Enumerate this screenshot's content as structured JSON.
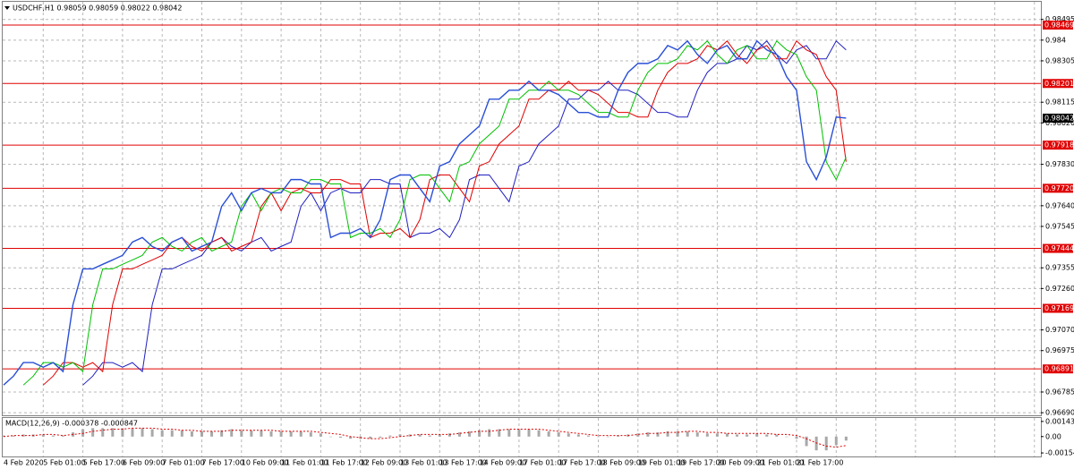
{
  "chart_data": [
    {
      "type": "line",
      "title": "USDCHF,H1  0.98059 0.98059 0.98022 0.98042",
      "categories": [
        "4 Feb 2020",
        null,
        null,
        null,
        "5 Feb 01:00",
        null,
        null,
        null,
        "5 Feb 17:00",
        null,
        null,
        null,
        "6 Feb 09:00",
        null,
        null,
        null,
        "7 Feb 01:00",
        null,
        null,
        null,
        "7 Feb 17:00",
        null,
        null,
        null,
        "10 Feb 09:00",
        null,
        null,
        null,
        "11 Feb 01:00",
        null,
        null,
        null,
        "11 Feb 17:00",
        null,
        null,
        null,
        "12 Feb 09:00",
        null,
        null,
        null,
        "13 Feb 01:00",
        null,
        null,
        null,
        "13 Feb 17:00",
        null,
        null,
        null,
        "14 Feb 09:00",
        null,
        null,
        null,
        "17 Feb 01:00",
        null,
        null,
        null,
        "17 Feb 17:00",
        null,
        null,
        null,
        "18 Feb 09:00",
        null,
        null,
        null,
        "19 Feb 01:00",
        null,
        null,
        null,
        "19 Feb 17:00",
        null,
        null,
        null,
        "20 Feb 09:00",
        null,
        null,
        null,
        "21 Feb 01:00",
        null,
        null,
        null,
        "21 Feb 17:00",
        null,
        null,
        null,
        null,
        null
      ],
      "series": [
        {
          "color": "#2a4fd6",
          "width": 1.4,
          "values": [
            0.96817,
            0.96858,
            0.9692,
            0.9692,
            0.96899,
            0.9692,
            0.96879,
            0.97186,
            0.9735,
            0.9735,
            0.97371,
            0.97391,
            0.97412,
            0.97473,
            0.97494,
            0.97453,
            0.97432,
            0.97473,
            0.97494,
            0.97432,
            0.97453,
            0.97473,
            0.97637,
            0.97699,
            0.97617,
            0.97699,
            0.97719,
            0.97699,
            0.97699,
            0.9776,
            0.9776,
            0.9774,
            0.9774,
            0.97494,
            0.97514,
            0.97514,
            0.97535,
            0.97494,
            0.97576,
            0.9776,
            0.97781,
            0.97781,
            0.97719,
            0.97658,
            0.97822,
            0.97842,
            0.97924,
            0.97965,
            0.98006,
            0.98129,
            0.98129,
            0.9817,
            0.9817,
            0.98211,
            0.9817,
            0.9817,
            0.9815,
            0.98109,
            0.98068,
            0.98068,
            0.98047,
            0.98047,
            0.9817,
            0.98252,
            0.98293,
            0.98293,
            0.98314,
            0.98375,
            0.98355,
            0.98396,
            0.98334,
            0.98293,
            0.98355,
            0.98375,
            0.98314,
            0.98314,
            0.98396,
            0.98355,
            0.98334,
            0.98232,
            0.9817,
            0.97842,
            0.9776,
            0.97863,
            0.98047,
            0.98042
          ]
        },
        {
          "color": "#00c000",
          "width": 1,
          "values": [
            null,
            null,
            0.96817,
            0.96858,
            0.9692,
            0.9692,
            0.96899,
            0.9692,
            0.96879,
            0.97186,
            0.9735,
            0.9735,
            0.97371,
            0.97391,
            0.97412,
            0.97473,
            0.97494,
            0.97453,
            0.97432,
            0.97473,
            0.97494,
            0.97432,
            0.97453,
            0.97473,
            0.97637,
            0.97699,
            0.97617,
            0.97699,
            0.97719,
            0.97699,
            0.97699,
            0.9776,
            0.9776,
            0.9774,
            0.9774,
            0.97494,
            0.97514,
            0.97514,
            0.97535,
            0.97494,
            0.97576,
            0.9776,
            0.97781,
            0.97781,
            0.97719,
            0.97658,
            0.97822,
            0.97842,
            0.97924,
            0.97965,
            0.98006,
            0.98129,
            0.98129,
            0.9817,
            0.9817,
            0.98211,
            0.9817,
            0.9817,
            0.9815,
            0.98109,
            0.98068,
            0.98068,
            0.98047,
            0.98047,
            0.9817,
            0.98252,
            0.98293,
            0.98293,
            0.98314,
            0.98375,
            0.98355,
            0.98396,
            0.98334,
            0.98293,
            0.98355,
            0.98375,
            0.98314,
            0.98314,
            0.98396,
            0.98355,
            0.98334,
            0.98232,
            0.9817,
            0.97842,
            0.9776,
            0.97863
          ]
        },
        {
          "color": "#e00000",
          "width": 1,
          "values": [
            null,
            null,
            null,
            null,
            0.96817,
            0.96858,
            0.9692,
            0.9692,
            0.96899,
            0.9692,
            0.96879,
            0.97186,
            0.9735,
            0.9735,
            0.97371,
            0.97391,
            0.97412,
            0.97473,
            0.97494,
            0.97453,
            0.97432,
            0.97473,
            0.97494,
            0.97432,
            0.97453,
            0.97473,
            0.97637,
            0.97699,
            0.97617,
            0.97699,
            0.97719,
            0.97699,
            0.97699,
            0.9776,
            0.9776,
            0.9774,
            0.9774,
            0.97494,
            0.97514,
            0.97514,
            0.97535,
            0.97494,
            0.97576,
            0.9776,
            0.97781,
            0.97781,
            0.97719,
            0.97658,
            0.97822,
            0.97842,
            0.97924,
            0.97965,
            0.98006,
            0.98129,
            0.98129,
            0.9817,
            0.9817,
            0.98211,
            0.9817,
            0.9817,
            0.9815,
            0.98109,
            0.98068,
            0.98068,
            0.98047,
            0.98047,
            0.9817,
            0.98252,
            0.98293,
            0.98293,
            0.98314,
            0.98375,
            0.98355,
            0.98396,
            0.98334,
            0.98293,
            0.98355,
            0.98375,
            0.98314,
            0.98314,
            0.98396,
            0.98355,
            0.98334,
            0.98232,
            0.9817,
            0.97842
          ]
        },
        {
          "color": "#2020c0",
          "width": 1,
          "values": [
            null,
            null,
            null,
            null,
            null,
            null,
            null,
            null,
            0.96817,
            0.96858,
            0.9692,
            0.9692,
            0.96899,
            0.9692,
            0.96879,
            0.97186,
            0.9735,
            0.9735,
            0.97371,
            0.97391,
            0.97412,
            0.97473,
            0.97494,
            0.97453,
            0.97432,
            0.97473,
            0.97494,
            0.97432,
            0.97453,
            0.97473,
            0.97637,
            0.97699,
            0.97617,
            0.97699,
            0.97719,
            0.97699,
            0.97699,
            0.9776,
            0.9776,
            0.9774,
            0.9774,
            0.97494,
            0.97514,
            0.97514,
            0.97535,
            0.97494,
            0.97576,
            0.9776,
            0.97781,
            0.97781,
            0.97719,
            0.97658,
            0.97822,
            0.97842,
            0.97924,
            0.97965,
            0.98006,
            0.98129,
            0.98129,
            0.9817,
            0.9817,
            0.98211,
            0.9817,
            0.9817,
            0.9815,
            0.98109,
            0.98068,
            0.98068,
            0.98047,
            0.98047,
            0.9817,
            0.98252,
            0.98293,
            0.98293,
            0.98314,
            0.98375,
            0.98355,
            0.98396,
            0.98334,
            0.98293,
            0.98355,
            0.98375,
            0.98314,
            0.98314,
            0.98396,
            0.98355
          ]
        }
      ],
      "ylim": [
        0.96674,
        0.9858
      ],
      "yticks": [
        0.98495,
        0.984,
        0.98305,
        0.98115,
        {
          "value": 0.9802,
          "label": "0.98020"
        },
        {
          "value": 0.9783,
          "label": "0.97830"
        },
        {
          "value": 0.9764,
          "label": "0.97640"
        },
        0.97545,
        0.97355,
        {
          "value": 0.9726,
          "label": "0.97260"
        },
        {
          "value": 0.9707,
          "label": "0.97070"
        },
        0.96975,
        0.96785,
        {
          "value": 0.9669,
          "label": "0.96690"
        }
      ],
      "levels": [
        0.98469,
        0.98201,
        0.97918,
        {
          "value": 0.9772,
          "label": "0.97720"
        },
        0.97444,
        0.97169,
        0.96891
      ],
      "level_color": "#e00000",
      "last_price": 0.98042,
      "grid": true
    },
    {
      "type": "macd",
      "title": "MACD(12,26,9) -0.000378 -0.000847",
      "series": [
        {
          "color": "#a8a8a8",
          "values": [
            0.0001,
            0.0001,
            0.0002,
            0.0002,
            0.0002,
            0.0001,
            0.0001,
            0.0004,
            0.0007,
            0.0008,
            0.0008,
            0.0008,
            0.0008,
            0.0008,
            0.0008,
            0.0007,
            0.0006,
            0.0006,
            0.0006,
            0.0005,
            0.0005,
            0.0005,
            0.0006,
            0.0007,
            0.0006,
            0.0006,
            0.0006,
            0.0005,
            0.0005,
            0.0005,
            0.0005,
            0.0004,
            0.0003,
            0,
            -0.0001,
            -0.0002,
            -0.0002,
            -0.0002,
            -0.0001,
            0.0001,
            0.0002,
            0.0002,
            0.0002,
            0.0001,
            0.0002,
            0.0003,
            0.0004,
            0.0005,
            0.0006,
            0.0007,
            0.0007,
            0.0007,
            0.0007,
            0.0007,
            0.0006,
            0.0005,
            0.0004,
            0.0003,
            0.0002,
            0.0001,
            0,
            0,
            0.0001,
            0.0002,
            0.0003,
            0.0004,
            0.0004,
            0.0005,
            0.0005,
            0.0005,
            0.0004,
            0.0003,
            0.0003,
            0.0003,
            0.0002,
            0.0002,
            0.0003,
            0.0002,
            0.0002,
            0,
            -0.0002,
            -0.0009,
            -0.0013,
            -0.0013,
            -0.0008,
            -0.000378
          ]
        },
        {
          "color": "#e00000",
          "values": [
            0,
            0.0001,
            0.0001,
            0.0001,
            0.0002,
            0.0002,
            0.0001,
            0.0002,
            0.0003,
            0.0005,
            0.0006,
            0.0007,
            0.0007,
            0.0008,
            0.0008,
            0.0008,
            0.0007,
            0.0007,
            0.0006,
            0.0006,
            0.0005,
            0.0005,
            0.0005,
            0.0006,
            0.0006,
            0.0006,
            0.0006,
            0.0006,
            0.0005,
            0.0005,
            0.0005,
            0.0005,
            0.0004,
            0.0003,
            0.0002,
            0,
            -0.0001,
            -0.0002,
            -0.0002,
            -0.0001,
            0,
            0.0001,
            0.0002,
            0.0002,
            0.0002,
            0.0002,
            0.0003,
            0.0004,
            0.0005,
            0.0005,
            0.0006,
            0.0007,
            0.0007,
            0.0007,
            0.0007,
            0.0006,
            0.0005,
            0.0004,
            0.0003,
            0.0002,
            0.0001,
            0.0001,
            0.0001,
            0.0001,
            0.0002,
            0.0003,
            0.0003,
            0.0004,
            0.0004,
            0.0005,
            0.0005,
            0.0004,
            0.0004,
            0.0003,
            0.0003,
            0.0003,
            0.0003,
            0.0003,
            0.0002,
            0.0002,
            0.0001,
            -0.0002,
            -0.0006,
            -0.0009,
            -0.001,
            -0.000847
          ]
        }
      ],
      "ylim": [
        -0.00188,
        0.00176
      ],
      "yticks": [
        0.001433,
        {
          "value": 0,
          "label": "0.00"
        },
        -0.001546
      ]
    }
  ]
}
